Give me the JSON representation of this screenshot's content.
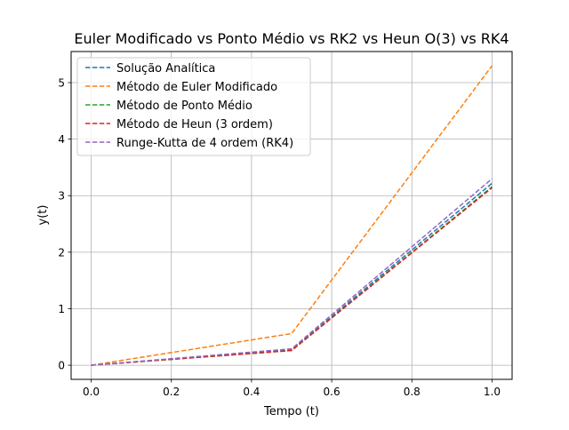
{
  "chart_data": {
    "type": "line",
    "title": "Euler Modificado vs Ponto Médio vs RK2 vs Heun O(3) vs RK4",
    "xlabel": "Tempo (t)",
    "ylabel": "y(t)",
    "xlim": [
      -0.05,
      1.05
    ],
    "ylim": [
      -0.25,
      5.55
    ],
    "xticks": [
      0.0,
      0.2,
      0.4,
      0.6,
      0.8,
      1.0
    ],
    "xtick_labels": [
      "0.0",
      "0.2",
      "0.4",
      "0.6",
      "0.8",
      "1.0"
    ],
    "yticks": [
      0,
      1,
      2,
      3,
      4,
      5
    ],
    "ytick_labels": [
      "0",
      "1",
      "2",
      "3",
      "4",
      "5"
    ],
    "grid": true,
    "legend_position": "top-left",
    "line_style": "dashed",
    "x": [
      0.0,
      0.5,
      1.0
    ],
    "series": [
      {
        "name": "Solução Analítica",
        "color": "#1f77b4",
        "values": [
          0.0,
          0.27,
          3.22
        ]
      },
      {
        "name": "Método de Euler Modificado",
        "color": "#ff7f0e",
        "values": [
          0.0,
          0.56,
          5.3
        ]
      },
      {
        "name": "Método de Ponto Médio",
        "color": "#2ca02c",
        "values": [
          0.0,
          0.26,
          3.16
        ]
      },
      {
        "name": "Método de Heun (3 ordem)",
        "color": "#d62728",
        "values": [
          0.0,
          0.26,
          3.14
        ]
      },
      {
        "name": "Runge-Kutta de 4 ordem (RK4)",
        "color": "#9467bd",
        "values": [
          0.0,
          0.29,
          3.3
        ]
      }
    ]
  }
}
